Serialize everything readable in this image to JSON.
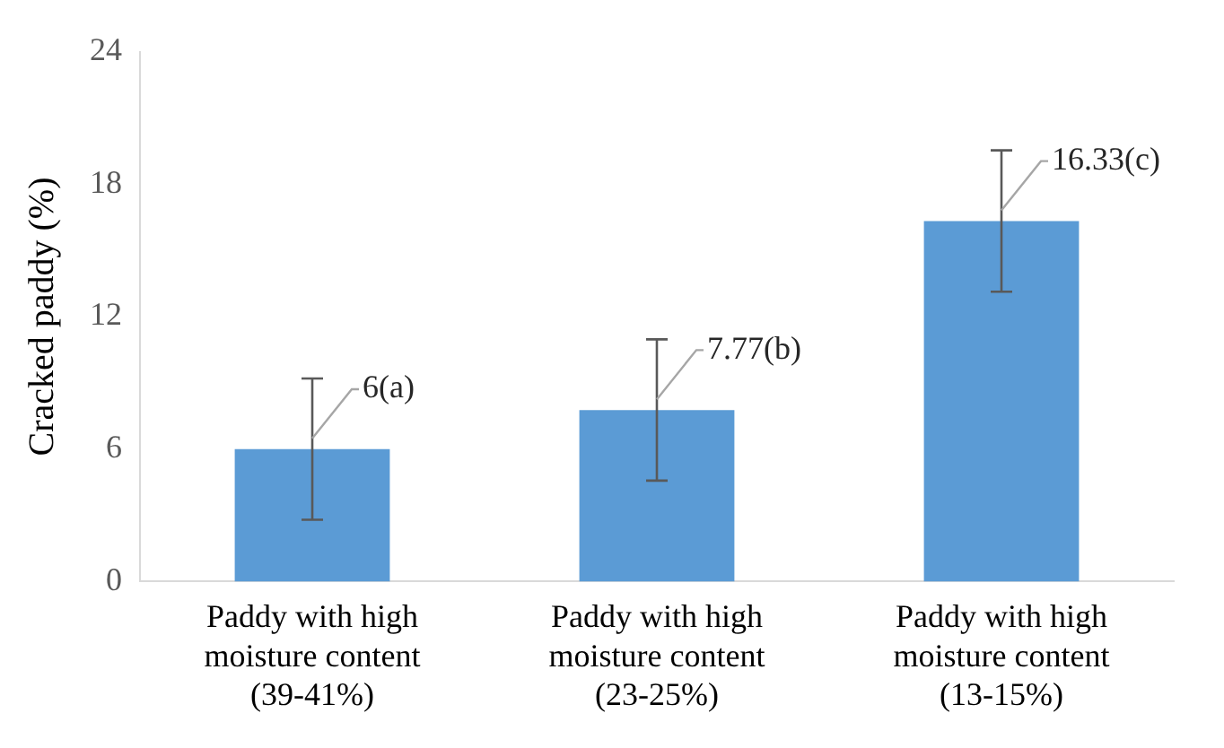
{
  "chart_data": {
    "type": "bar",
    "ylabel": "Cracked paddy (%)",
    "categories": [
      "Paddy with high moisture content (39-41%)",
      "Paddy with high moisture content (23-25%)",
      "Paddy with high moisture content (13-15%)"
    ],
    "values": [
      6,
      7.77,
      16.33
    ],
    "errors": [
      3.2,
      3.2,
      3.2
    ],
    "value_labels": [
      "6(a)",
      "7.77(b)",
      "16.33(c)"
    ],
    "color": "#5b9bd5",
    "ylim": [
      0,
      24
    ],
    "yticks": [
      0,
      6,
      12,
      18,
      24
    ],
    "grid": false,
    "legend": false
  }
}
